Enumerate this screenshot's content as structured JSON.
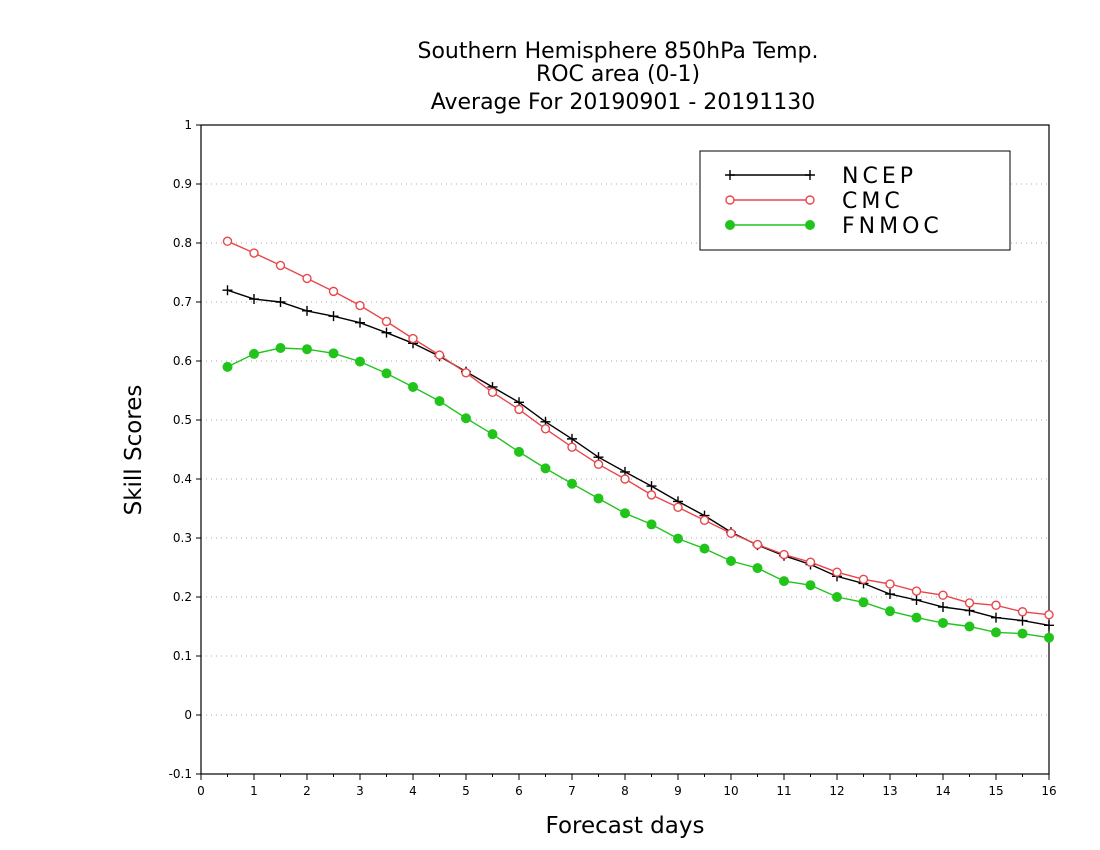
{
  "chart_data": {
    "type": "line",
    "title": [
      "Southern Hemisphere 850hPa Temp.",
      "ROC area (0-1)",
      "Average For 20190901 - 20191130"
    ],
    "xlabel": "Forecast days",
    "ylabel": "Skill Scores",
    "xlim": [
      0,
      16
    ],
    "ylim": [
      -0.1,
      1
    ],
    "xticks": [
      0,
      1,
      2,
      3,
      4,
      5,
      6,
      7,
      8,
      9,
      10,
      11,
      12,
      13,
      14,
      15,
      16
    ],
    "yticks": [
      -0.1,
      0,
      0.1,
      0.2,
      0.3,
      0.4,
      0.5,
      0.6,
      0.7,
      0.8,
      0.9,
      1
    ],
    "ytick_labels": [
      "-0.1",
      "0",
      "0.1",
      "0.2",
      "0.3",
      "0.4",
      "0.5",
      "0.6",
      "0.7",
      "0.8",
      "0.9",
      "1"
    ],
    "grid": "horizontal dotted",
    "legend_position": "top-right",
    "x": [
      0.5,
      1,
      1.5,
      2,
      2.5,
      3,
      3.5,
      4,
      4.5,
      5,
      5.5,
      6,
      6.5,
      7,
      7.5,
      8,
      8.5,
      9,
      9.5,
      10,
      10.5,
      11,
      11.5,
      12,
      12.5,
      13,
      13.5,
      14,
      14.5,
      15,
      15.5,
      16
    ],
    "series": [
      {
        "name": "NCEP",
        "color": "#000000",
        "marker": "plus",
        "values": [
          0.72,
          0.705,
          0.7,
          0.685,
          0.676,
          0.665,
          0.648,
          0.63,
          0.608,
          0.582,
          0.556,
          0.53,
          0.497,
          0.468,
          0.437,
          0.412,
          0.388,
          0.362,
          0.338,
          0.31,
          0.288,
          0.27,
          0.255,
          0.235,
          0.223,
          0.205,
          0.195,
          0.183,
          0.177,
          0.165,
          0.16,
          0.152
        ]
      },
      {
        "name": "CMC",
        "color": "#e8474a",
        "marker": "open-circle",
        "values": [
          0.803,
          0.783,
          0.762,
          0.74,
          0.718,
          0.694,
          0.667,
          0.638,
          0.61,
          0.58,
          0.547,
          0.518,
          0.485,
          0.454,
          0.425,
          0.4,
          0.373,
          0.352,
          0.33,
          0.308,
          0.289,
          0.272,
          0.259,
          0.242,
          0.23,
          0.222,
          0.21,
          0.203,
          0.19,
          0.186,
          0.175,
          0.17
        ]
      },
      {
        "name": "FNMOC",
        "color": "#22c41c",
        "marker": "filled-circle",
        "values": [
          0.59,
          0.612,
          0.622,
          0.62,
          0.613,
          0.599,
          0.579,
          0.556,
          0.532,
          0.503,
          0.476,
          0.446,
          0.418,
          0.392,
          0.367,
          0.342,
          0.323,
          0.299,
          0.282,
          0.261,
          0.249,
          0.227,
          0.22,
          0.2,
          0.191,
          0.176,
          0.165,
          0.156,
          0.15,
          0.14,
          0.138,
          0.131
        ]
      }
    ]
  }
}
